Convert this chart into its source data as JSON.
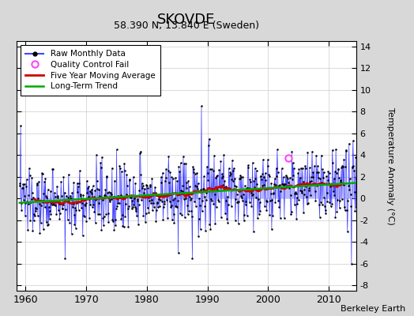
{
  "title": "SKOVDE",
  "subtitle": "58.390 N, 13.840 E (Sweden)",
  "ylabel": "Temperature Anomaly (°C)",
  "xlabel_ticks": [
    1960,
    1970,
    1980,
    1990,
    2000,
    2010
  ],
  "ylim": [
    -8.5,
    14.5
  ],
  "xlim": [
    1958.5,
    2014.5
  ],
  "yticks": [
    -8,
    -6,
    -4,
    -2,
    0,
    2,
    4,
    6,
    8,
    10,
    12,
    14
  ],
  "bg_color": "#d8d8d8",
  "plot_bg_color": "#ffffff",
  "line_color": "#4444ff",
  "fill_color": "#aaaaff",
  "ma_color": "#cc0000",
  "trend_color": "#00aa00",
  "qc_fail_color": "#ff44ff",
  "watermark": "Berkeley Earth",
  "seed": 137,
  "start_year": 1959,
  "end_year": 2014
}
